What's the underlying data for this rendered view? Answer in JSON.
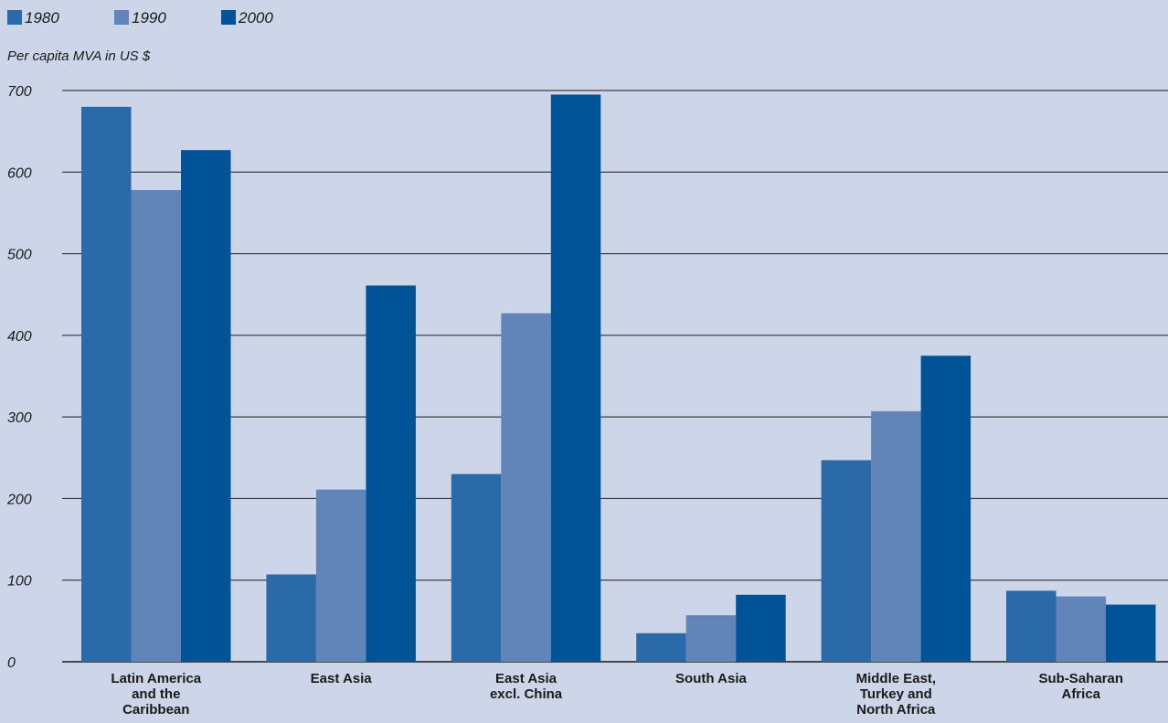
{
  "chart_data": {
    "type": "bar",
    "title": "",
    "xlabel": "",
    "ylabel": "Per capita MVA in US $",
    "ylim": [
      0,
      700
    ],
    "yticks": [
      0,
      100,
      200,
      300,
      400,
      500,
      600,
      700
    ],
    "grid": true,
    "legend_placement": "top-left",
    "categories": [
      [
        "Latin America",
        "and the",
        "Caribbean"
      ],
      [
        "East Asia"
      ],
      [
        "East Asia",
        "excl. China"
      ],
      [
        "South Asia"
      ],
      [
        "Middle East,",
        "Turkey and",
        "North Africa"
      ],
      [
        "Sub-Saharan",
        "Africa"
      ]
    ],
    "series": [
      {
        "name": "1980",
        "color": "#2b6aa8",
        "values": [
          680,
          107,
          230,
          35,
          247,
          87
        ]
      },
      {
        "name": "1990",
        "color": "#6185b8",
        "values": [
          578,
          211,
          427,
          57,
          307,
          80
        ]
      },
      {
        "name": "2000",
        "color": "#005397",
        "values": [
          627,
          461,
          695,
          82,
          375,
          70
        ]
      }
    ]
  }
}
